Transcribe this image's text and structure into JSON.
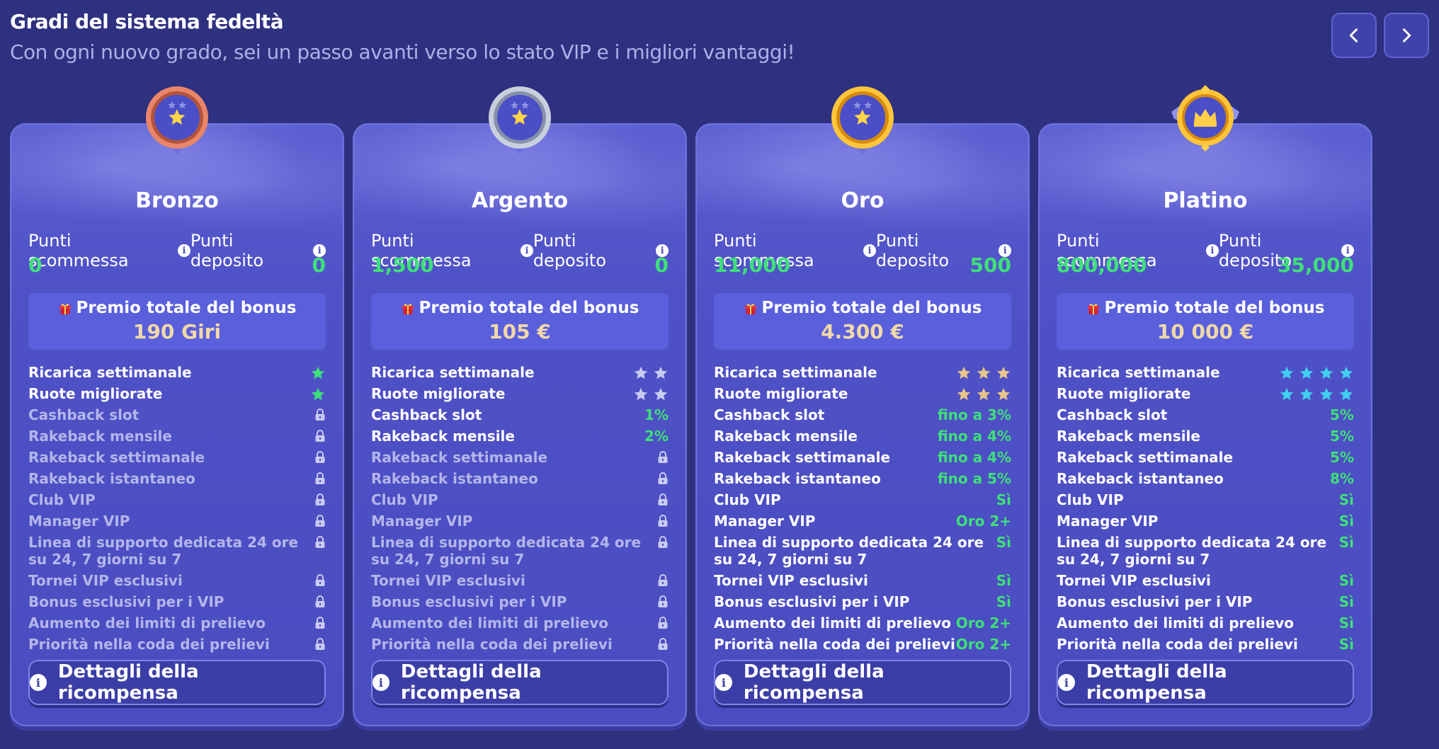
{
  "header": {
    "title": "Gradi del sistema fedeltà",
    "subtitle": "Con ogni nuovo grado, sei un passo avanti verso lo stato VIP e i migliori vantaggi!"
  },
  "nav": {
    "prev_icon": "chevron-left-icon",
    "next_icon": "chevron-right-icon"
  },
  "common": {
    "bet_points_label": "Punti scommessa",
    "deposit_points_label": "Punti deposito",
    "bonus_label": "Premio totale del bonus",
    "details_label": "Dettagli della ricompensa"
  },
  "colors": {
    "green": "#3ee07a",
    "gold": "#f1d9a8",
    "bronze": "#c96a4a",
    "silver": "#aeb6c6",
    "goldbadge": "#f2a91b",
    "platinum": "#f2a91b"
  },
  "tiers": [
    {
      "name": "Bronzo",
      "badge": "bronze-medal-icon",
      "bet_points": "0",
      "deposit_points": "0",
      "bonus": "190 Giri",
      "features": [
        {
          "label": "Ricarica settimanale",
          "stars": 1,
          "star_color": "#3ee07a"
        },
        {
          "label": "Ruote migliorate",
          "stars": 1,
          "star_color": "#3ee07a"
        },
        {
          "label": "Cashback slot",
          "locked": true
        },
        {
          "label": "Rakeback mensile",
          "locked": true
        },
        {
          "label": "Rakeback settimanale",
          "locked": true
        },
        {
          "label": "Rakeback istantaneo",
          "locked": true
        },
        {
          "label": "Club VIP",
          "locked": true
        },
        {
          "label": "Manager VIP",
          "locked": true
        },
        {
          "label": "Linea di supporto dedicata 24 ore su 24, 7 giorni su 7",
          "locked": true,
          "tall": true
        },
        {
          "label": "Tornei VIP esclusivi",
          "locked": true
        },
        {
          "label": "Bonus esclusivi per i VIP",
          "locked": true
        },
        {
          "label": "Aumento dei limiti di prelievo",
          "locked": true
        },
        {
          "label": "Priorità nella coda dei prelievi",
          "locked": true
        }
      ]
    },
    {
      "name": "Argento",
      "badge": "silver-medal-icon",
      "bet_points": "1,500",
      "deposit_points": "0",
      "bonus": "105 €",
      "features": [
        {
          "label": "Ricarica settimanale",
          "stars": 2,
          "star_color": "#c9cdf3"
        },
        {
          "label": "Ruote migliorate",
          "stars": 2,
          "star_color": "#c9cdf3"
        },
        {
          "label": "Cashback slot",
          "value": "1%"
        },
        {
          "label": "Rakeback mensile",
          "value": "2%"
        },
        {
          "label": "Rakeback settimanale",
          "locked": true
        },
        {
          "label": "Rakeback istantaneo",
          "locked": true
        },
        {
          "label": "Club VIP",
          "locked": true
        },
        {
          "label": "Manager VIP",
          "locked": true
        },
        {
          "label": "Linea di supporto dedicata 24 ore su 24, 7 giorni su 7",
          "locked": true,
          "tall": true
        },
        {
          "label": "Tornei VIP esclusivi",
          "locked": true
        },
        {
          "label": "Bonus esclusivi per i VIP",
          "locked": true
        },
        {
          "label": "Aumento dei limiti di prelievo",
          "locked": true
        },
        {
          "label": "Priorità nella coda dei prelievi",
          "locked": true
        }
      ]
    },
    {
      "name": "Oro",
      "badge": "gold-medal-icon",
      "bet_points": "11,000",
      "deposit_points": "500",
      "bonus": "4.300 €",
      "features": [
        {
          "label": "Ricarica settimanale",
          "stars": 3,
          "star_color": "#e8c58a"
        },
        {
          "label": "Ruote migliorate",
          "stars": 3,
          "star_color": "#e8c58a"
        },
        {
          "label": "Cashback slot",
          "value": "fino a 3%"
        },
        {
          "label": "Rakeback mensile",
          "value": "fino a 4%"
        },
        {
          "label": "Rakeback settimanale",
          "value": "fino a 4%"
        },
        {
          "label": "Rakeback istantaneo",
          "value": "fino a 5%"
        },
        {
          "label": "Club VIP",
          "value": "Sì"
        },
        {
          "label": "Manager VIP",
          "value": "Oro 2+"
        },
        {
          "label": "Linea di supporto dedicata 24 ore su 24, 7 giorni su 7",
          "value": "Sì",
          "tall": true
        },
        {
          "label": "Tornei VIP esclusivi",
          "value": "Sì"
        },
        {
          "label": "Bonus esclusivi per i VIP",
          "value": "Sì"
        },
        {
          "label": "Aumento dei limiti di prelievo",
          "value": "Oro 2+"
        },
        {
          "label": "Priorità nella coda dei prelievi",
          "value": "Oro 2+"
        }
      ]
    },
    {
      "name": "Platino",
      "badge": "platinum-crown-icon",
      "bet_points": "800,000",
      "deposit_points": "35,000",
      "bonus": "10 000 €",
      "features": [
        {
          "label": "Ricarica settimanale",
          "stars": 4,
          "star_color": "#3fd0f0"
        },
        {
          "label": "Ruote migliorate",
          "stars": 4,
          "star_color": "#3fd0f0"
        },
        {
          "label": "Cashback slot",
          "value": "5%"
        },
        {
          "label": "Rakeback mensile",
          "value": "5%"
        },
        {
          "label": "Rakeback settimanale",
          "value": "5%"
        },
        {
          "label": "Rakeback istantaneo",
          "value": "8%"
        },
        {
          "label": "Club VIP",
          "value": "Sì"
        },
        {
          "label": "Manager VIP",
          "value": "Sì"
        },
        {
          "label": "Linea di supporto dedicata 24 ore su 24, 7 giorni su 7",
          "value": "Sì",
          "tall": true
        },
        {
          "label": "Tornei VIP esclusivi",
          "value": "Sì"
        },
        {
          "label": "Bonus esclusivi per i VIP",
          "value": "Sì"
        },
        {
          "label": "Aumento dei limiti di prelievo",
          "value": "Sì"
        },
        {
          "label": "Priorità nella coda dei prelievi",
          "value": "Sì"
        }
      ]
    }
  ]
}
